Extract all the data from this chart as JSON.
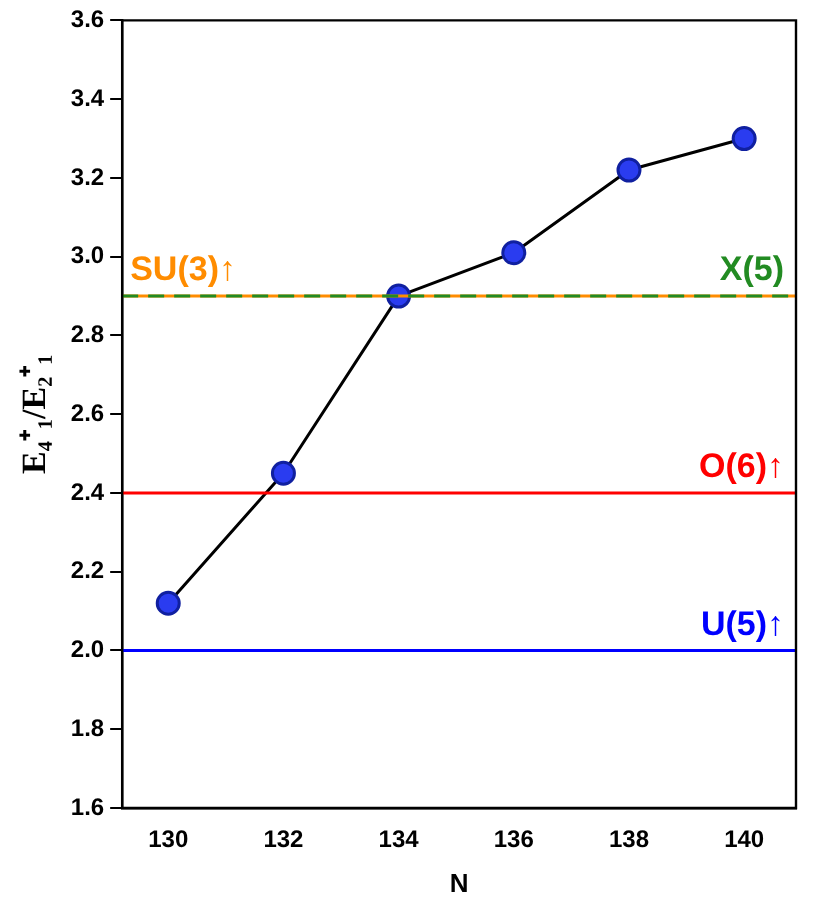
{
  "chart_data": {
    "type": "line",
    "xlabel": "N",
    "ylabel": "E₄⁺₁/E₂⁺₁",
    "x": [
      130,
      132,
      134,
      136,
      138,
      140
    ],
    "series": [
      {
        "color": "#000000",
        "values": [
          2.12,
          2.45,
          2.9,
          3.01,
          3.22,
          3.3
        ]
      }
    ],
    "marker": "circle",
    "xlim": [
      129.2,
      140.9
    ],
    "xticks": [
      130,
      132,
      134,
      136,
      138,
      140
    ],
    "ylim": [
      1.6,
      3.6
    ],
    "yticks": [
      1.6,
      1.8,
      {
        "value": 2,
        "label": "2.0"
      },
      2.2,
      2.4,
      2.6,
      2.8,
      {
        "value": 3,
        "label": "3.0"
      },
      3.2,
      3.4,
      3.6
    ],
    "ref_lines": [
      {
        "axis": "y",
        "value": 2.9,
        "label": "SU(3)↑",
        "color": "#ff8c00"
      },
      {
        "axis": "y",
        "value": 2.9,
        "label": "X(5)",
        "color": "#228b22",
        "line_style": "dashed"
      },
      {
        "axis": "y",
        "value": 2.4,
        "label": "O(6)↑",
        "color": "#ff0000"
      },
      {
        "axis": "y",
        "value": 2.0,
        "label": "U(5)↑",
        "color": "#0000ff"
      }
    ],
    "grid": false,
    "legend": false
  }
}
